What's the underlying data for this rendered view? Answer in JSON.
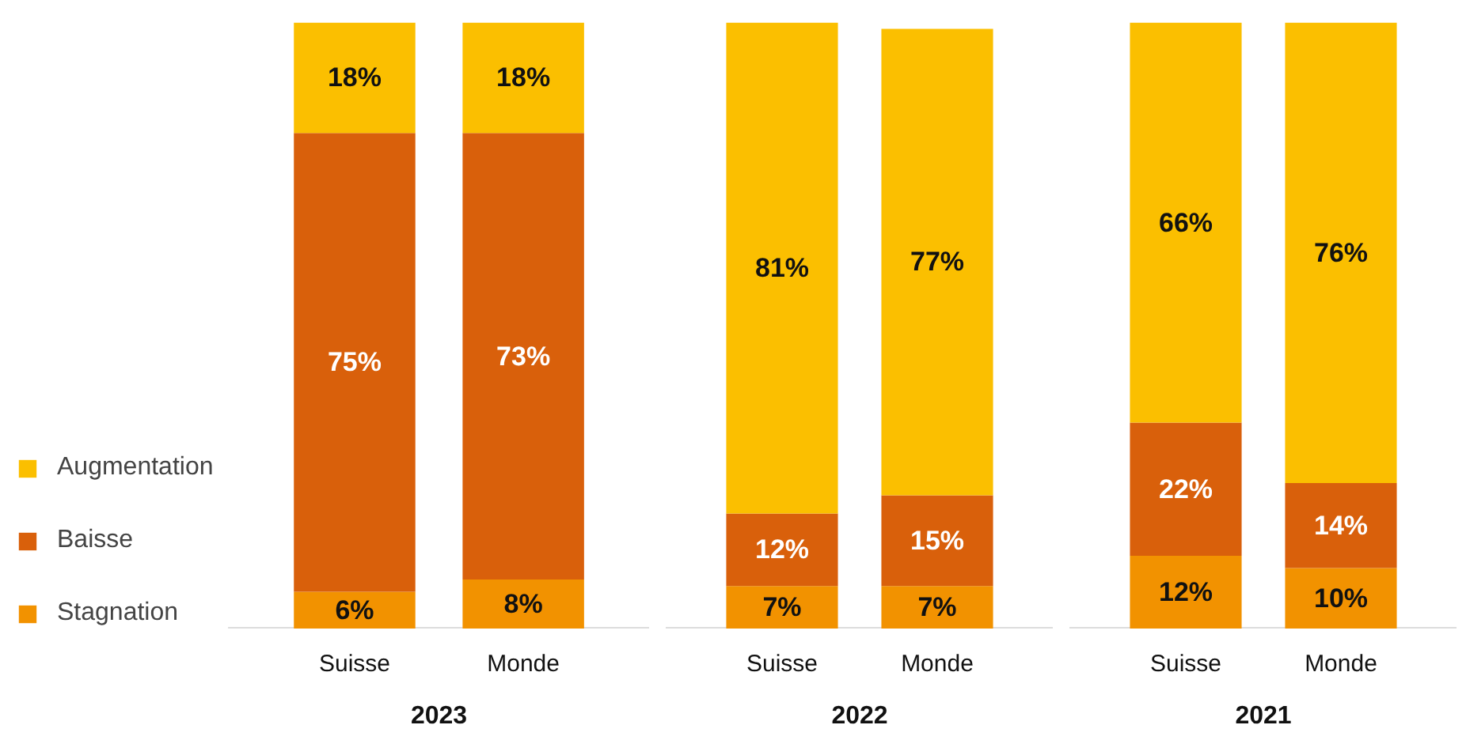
{
  "chart_data": [
    {
      "type": "bar",
      "stacked": true,
      "xlabel": "2023",
      "categories": [
        "Suisse",
        "Monde"
      ],
      "data_labels": true,
      "legend": "left",
      "series": [
        {
          "name": "Stagnation",
          "color": "#f29200",
          "values": [
            6,
            8
          ],
          "value_labels": [
            "6%",
            "8%"
          ]
        },
        {
          "name": "Baisse",
          "color": "#d9600b",
          "values": [
            75,
            73
          ],
          "value_labels": [
            "75%",
            "73%"
          ]
        },
        {
          "name": "Augmentation",
          "color": "#fbbf00",
          "values": [
            18,
            18
          ],
          "value_labels": [
            "18%",
            "18%"
          ]
        }
      ]
    },
    {
      "type": "bar",
      "stacked": true,
      "xlabel": "2022",
      "categories": [
        "Suisse",
        "Monde"
      ],
      "data_labels": true,
      "series": [
        {
          "color": "#f29200",
          "values": [
            7,
            7
          ],
          "value_labels": [
            "7%",
            "7%"
          ]
        },
        {
          "color": "#d9600b",
          "values": [
            12,
            15
          ],
          "value_labels": [
            "12%",
            "15%"
          ]
        },
        {
          "color": "#fbbf00",
          "values": [
            81,
            77
          ],
          "value_labels": [
            "81%",
            "77%"
          ]
        }
      ]
    },
    {
      "type": "bar",
      "stacked": true,
      "xlabel": "2021",
      "categories": [
        "Suisse",
        "Monde"
      ],
      "data_labels": true,
      "series": [
        {
          "color": "#f29200",
          "values": [
            12,
            10
          ],
          "value_labels": [
            "12%",
            "10%"
          ]
        },
        {
          "color": "#d9600b",
          "values": [
            22,
            14
          ],
          "value_labels": [
            "22%",
            "14%"
          ]
        },
        {
          "color": "#fbbf00",
          "values": [
            66,
            76
          ],
          "value_labels": [
            "66%",
            "76%"
          ]
        }
      ]
    }
  ]
}
